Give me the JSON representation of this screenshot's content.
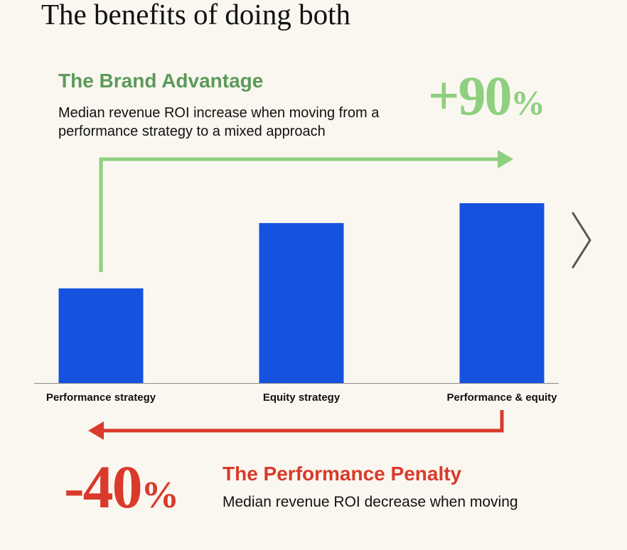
{
  "page": {
    "title": "The benefits of doing both"
  },
  "brand": {
    "title": "The Brand Advantage",
    "description": "Median revenue ROI increase when moving from a performance strategy to a mixed approach",
    "percent_number": "+90",
    "percent_sign": "%",
    "color": "#5b9a5a",
    "arrow_color": "#8fd080"
  },
  "penalty": {
    "title": "The Performance Penalty",
    "description": "Median revenue ROI decrease when moving",
    "percent_number": "-40",
    "percent_sign": "%",
    "color": "#d93a2b"
  },
  "navigation": {
    "next_icon": "chevron-right-icon"
  },
  "chart_data": {
    "type": "bar",
    "title": "The benefits of doing both",
    "categories": [
      "Performance strategy",
      "Equity strategy",
      "Performance & equity"
    ],
    "values": [
      1.0,
      1.69,
      1.9
    ],
    "ylim": [
      0,
      2.2
    ],
    "xlabel": "",
    "ylabel": "",
    "grid": false,
    "bar_color": "#1552e0",
    "axis_color": "#8a8a8a"
  }
}
